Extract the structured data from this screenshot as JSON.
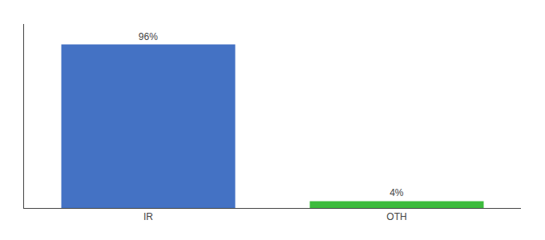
{
  "chart_data": {
    "type": "bar",
    "categories": [
      "IR",
      "OTH"
    ],
    "values": [
      96,
      4
    ],
    "value_labels": [
      "96%",
      "4%"
    ],
    "colors": [
      "#4472c4",
      "#3dbb3d"
    ],
    "ylim": [
      0,
      108
    ],
    "grid": false,
    "tick_labels": "x"
  }
}
